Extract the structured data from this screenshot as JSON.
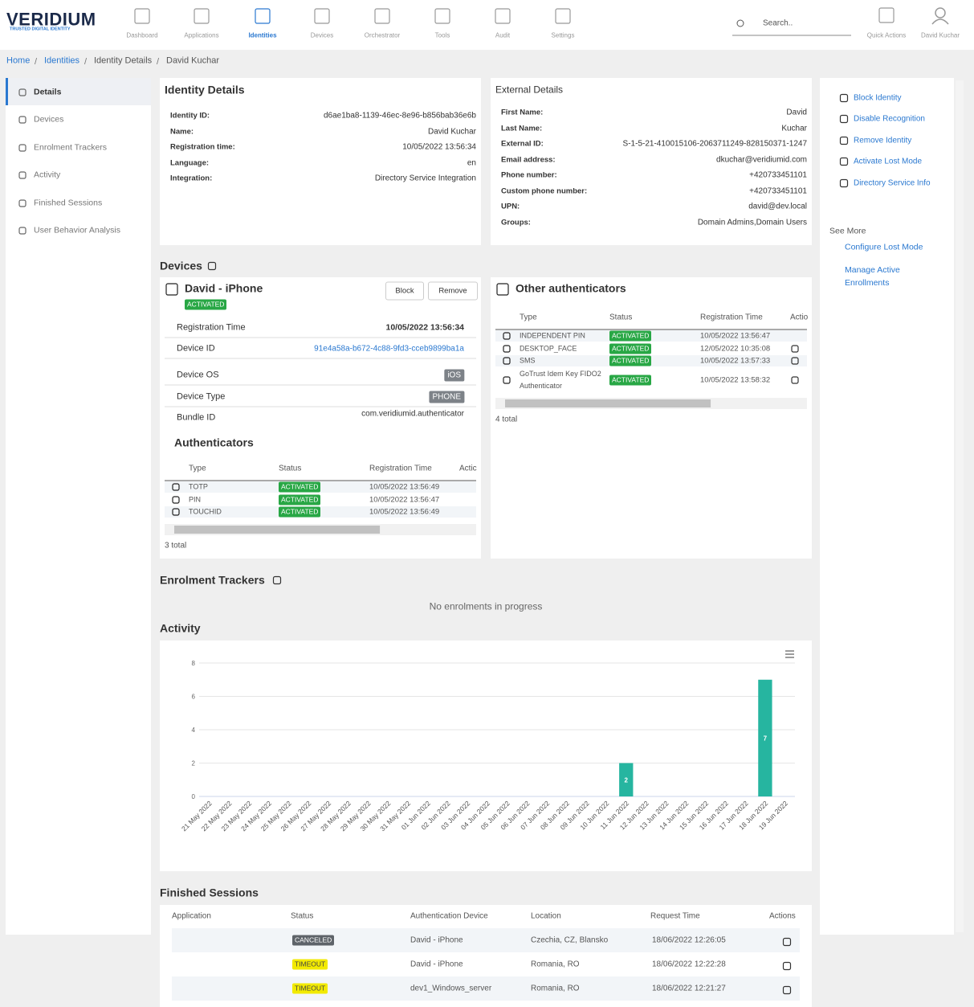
{
  "header": {
    "logo": "VERIDIUM",
    "tagline": "TRUSTED DIGITAL IDENTITY",
    "nav": [
      "Dashboard",
      "Applications",
      "Identities",
      "Devices",
      "Orchestrator",
      "Tools",
      "Audit",
      "Settings"
    ],
    "search_placeholder": "Search..",
    "quick_actions": "Quick Actions",
    "user": "David Kuchar"
  },
  "breadcrumb": [
    "Home",
    "Identities",
    "Identity Details",
    "David Kuchar"
  ],
  "sidebar": [
    "Details",
    "Devices",
    "Enrolment Trackers",
    "Activity",
    "Finished Sessions",
    "User Behavior Analysis"
  ],
  "identity_details": {
    "title": "Identity Details",
    "rows": [
      [
        "Identity ID:",
        "d6ae1ba8-1139-46ec-8e96-b856bab36e6b"
      ],
      [
        "Name:",
        "David Kuchar"
      ],
      [
        "Registration time:",
        "10/05/2022 13:56:34"
      ],
      [
        "Language:",
        "en"
      ],
      [
        "Integration:",
        "Directory Service Integration"
      ]
    ]
  },
  "external_details": {
    "title": "External Details",
    "rows": [
      [
        "First Name:",
        "David"
      ],
      [
        "Last Name:",
        "Kuchar"
      ],
      [
        "External ID:",
        "S-1-5-21-410015106-2063711249-828150371-1247"
      ],
      [
        "Email address:",
        "dkuchar@veridiumid.com"
      ],
      [
        "Phone number:",
        "+420733451101"
      ],
      [
        "Custom phone number:",
        "+420733451101"
      ],
      [
        "UPN:",
        "david@dev.local"
      ],
      [
        "Groups:",
        "Domain Admins,Domain Users"
      ]
    ]
  },
  "actions": {
    "items": [
      "Block Identity",
      "Disable Recognition",
      "Remove Identity",
      "Activate Lost Mode",
      "Directory Service Info"
    ],
    "see_more": "See More",
    "links": [
      "Configure Lost Mode",
      "Manage Active Enrollments"
    ]
  },
  "devices": {
    "heading": "Devices",
    "device": {
      "name": "David - iPhone",
      "status": "ACTIVATED",
      "buttons": [
        "Block",
        "Remove"
      ],
      "rows": [
        [
          "Registration Time",
          "10/05/2022 13:56:34"
        ],
        [
          "Device ID",
          "91e4a58a-b672-4c88-9fd3-cceb9899ba1a"
        ],
        [
          "Device OS",
          "iOS"
        ],
        [
          "Device Type",
          "PHONE"
        ],
        [
          "Bundle ID",
          "com.veridiumid.authenticator"
        ]
      ]
    },
    "authenticators": {
      "heading": "Authenticators",
      "columns": [
        "Type",
        "Status",
        "Registration Time",
        "Actic"
      ],
      "rows": [
        [
          "TOTP",
          "ACTIVATED",
          "10/05/2022 13:56:49"
        ],
        [
          "PIN",
          "ACTIVATED",
          "10/05/2022 13:56:47"
        ],
        [
          "TOUCHID",
          "ACTIVATED",
          "10/05/2022 13:56:49"
        ]
      ],
      "total": "3 total"
    }
  },
  "other_authenticators": {
    "title": "Other authenticators",
    "columns": [
      "Type",
      "Status",
      "Registration Time",
      "Actio"
    ],
    "rows": [
      [
        "INDEPENDENT PIN",
        "ACTIVATED",
        "10/05/2022 13:56:47"
      ],
      [
        "DESKTOP_FACE",
        "ACTIVATED",
        "12/05/2022 10:35:08"
      ],
      [
        "SMS",
        "ACTIVATED",
        "10/05/2022 13:57:33"
      ],
      [
        "GoTrust Idem Key FIDO2 Authenticator",
        "ACTIVATED",
        "10/05/2022 13:58:32"
      ]
    ],
    "total": "4 total"
  },
  "enrolment_trackers": {
    "heading": "Enrolment Trackers",
    "empty": "No enrolments in progress"
  },
  "activity_heading": "Activity",
  "chart_data": {
    "type": "bar",
    "categories": [
      "21 May 2022",
      "22 May 2022",
      "23 May 2022",
      "24 May 2022",
      "25 May 2022",
      "26 May 2022",
      "27 May 2022",
      "28 May 2022",
      "29 May 2022",
      "30 May 2022",
      "31 May 2022",
      "01 Jun 2022",
      "02 Jun 2022",
      "03 Jun 2022",
      "04 Jun 2022",
      "05 Jun 2022",
      "06 Jun 2022",
      "07 Jun 2022",
      "08 Jun 2022",
      "09 Jun 2022",
      "10 Jun 2022",
      "11 Jun 2022",
      "12 Jun 2022",
      "13 Jun 2022",
      "14 Jun 2022",
      "15 Jun 2022",
      "16 Jun 2022",
      "17 Jun 2022",
      "18 Jun 2022",
      "19 Jun 2022"
    ],
    "values": [
      0,
      0,
      0,
      0,
      0,
      0,
      0,
      0,
      0,
      0,
      0,
      0,
      0,
      0,
      0,
      0,
      0,
      0,
      0,
      0,
      0,
      2,
      0,
      0,
      0,
      0,
      0,
      0,
      7,
      0
    ],
    "color": "#26b5a0",
    "ylim": [
      0,
      8
    ],
    "yticks": [
      0,
      2,
      4,
      6,
      8
    ],
    "grid": true
  },
  "finished_sessions": {
    "heading": "Finished Sessions",
    "columns": [
      "Application",
      "Status",
      "Authentication Device",
      "Location",
      "Request Time",
      "Actions"
    ],
    "rows": [
      {
        "status": "CANCELED",
        "device": "David - iPhone",
        "location": "Czechia, CZ, Blansko",
        "time": "18/06/2022 12:26:05"
      },
      {
        "status": "TIMEOUT",
        "device": "David - iPhone",
        "location": "Romania, RO",
        "time": "18/06/2022 12:22:28"
      },
      {
        "status": "TIMEOUT",
        "device": "dev1_Windows_server",
        "location": "Romania, RO",
        "time": "18/06/2022 12:21:27"
      }
    ]
  }
}
